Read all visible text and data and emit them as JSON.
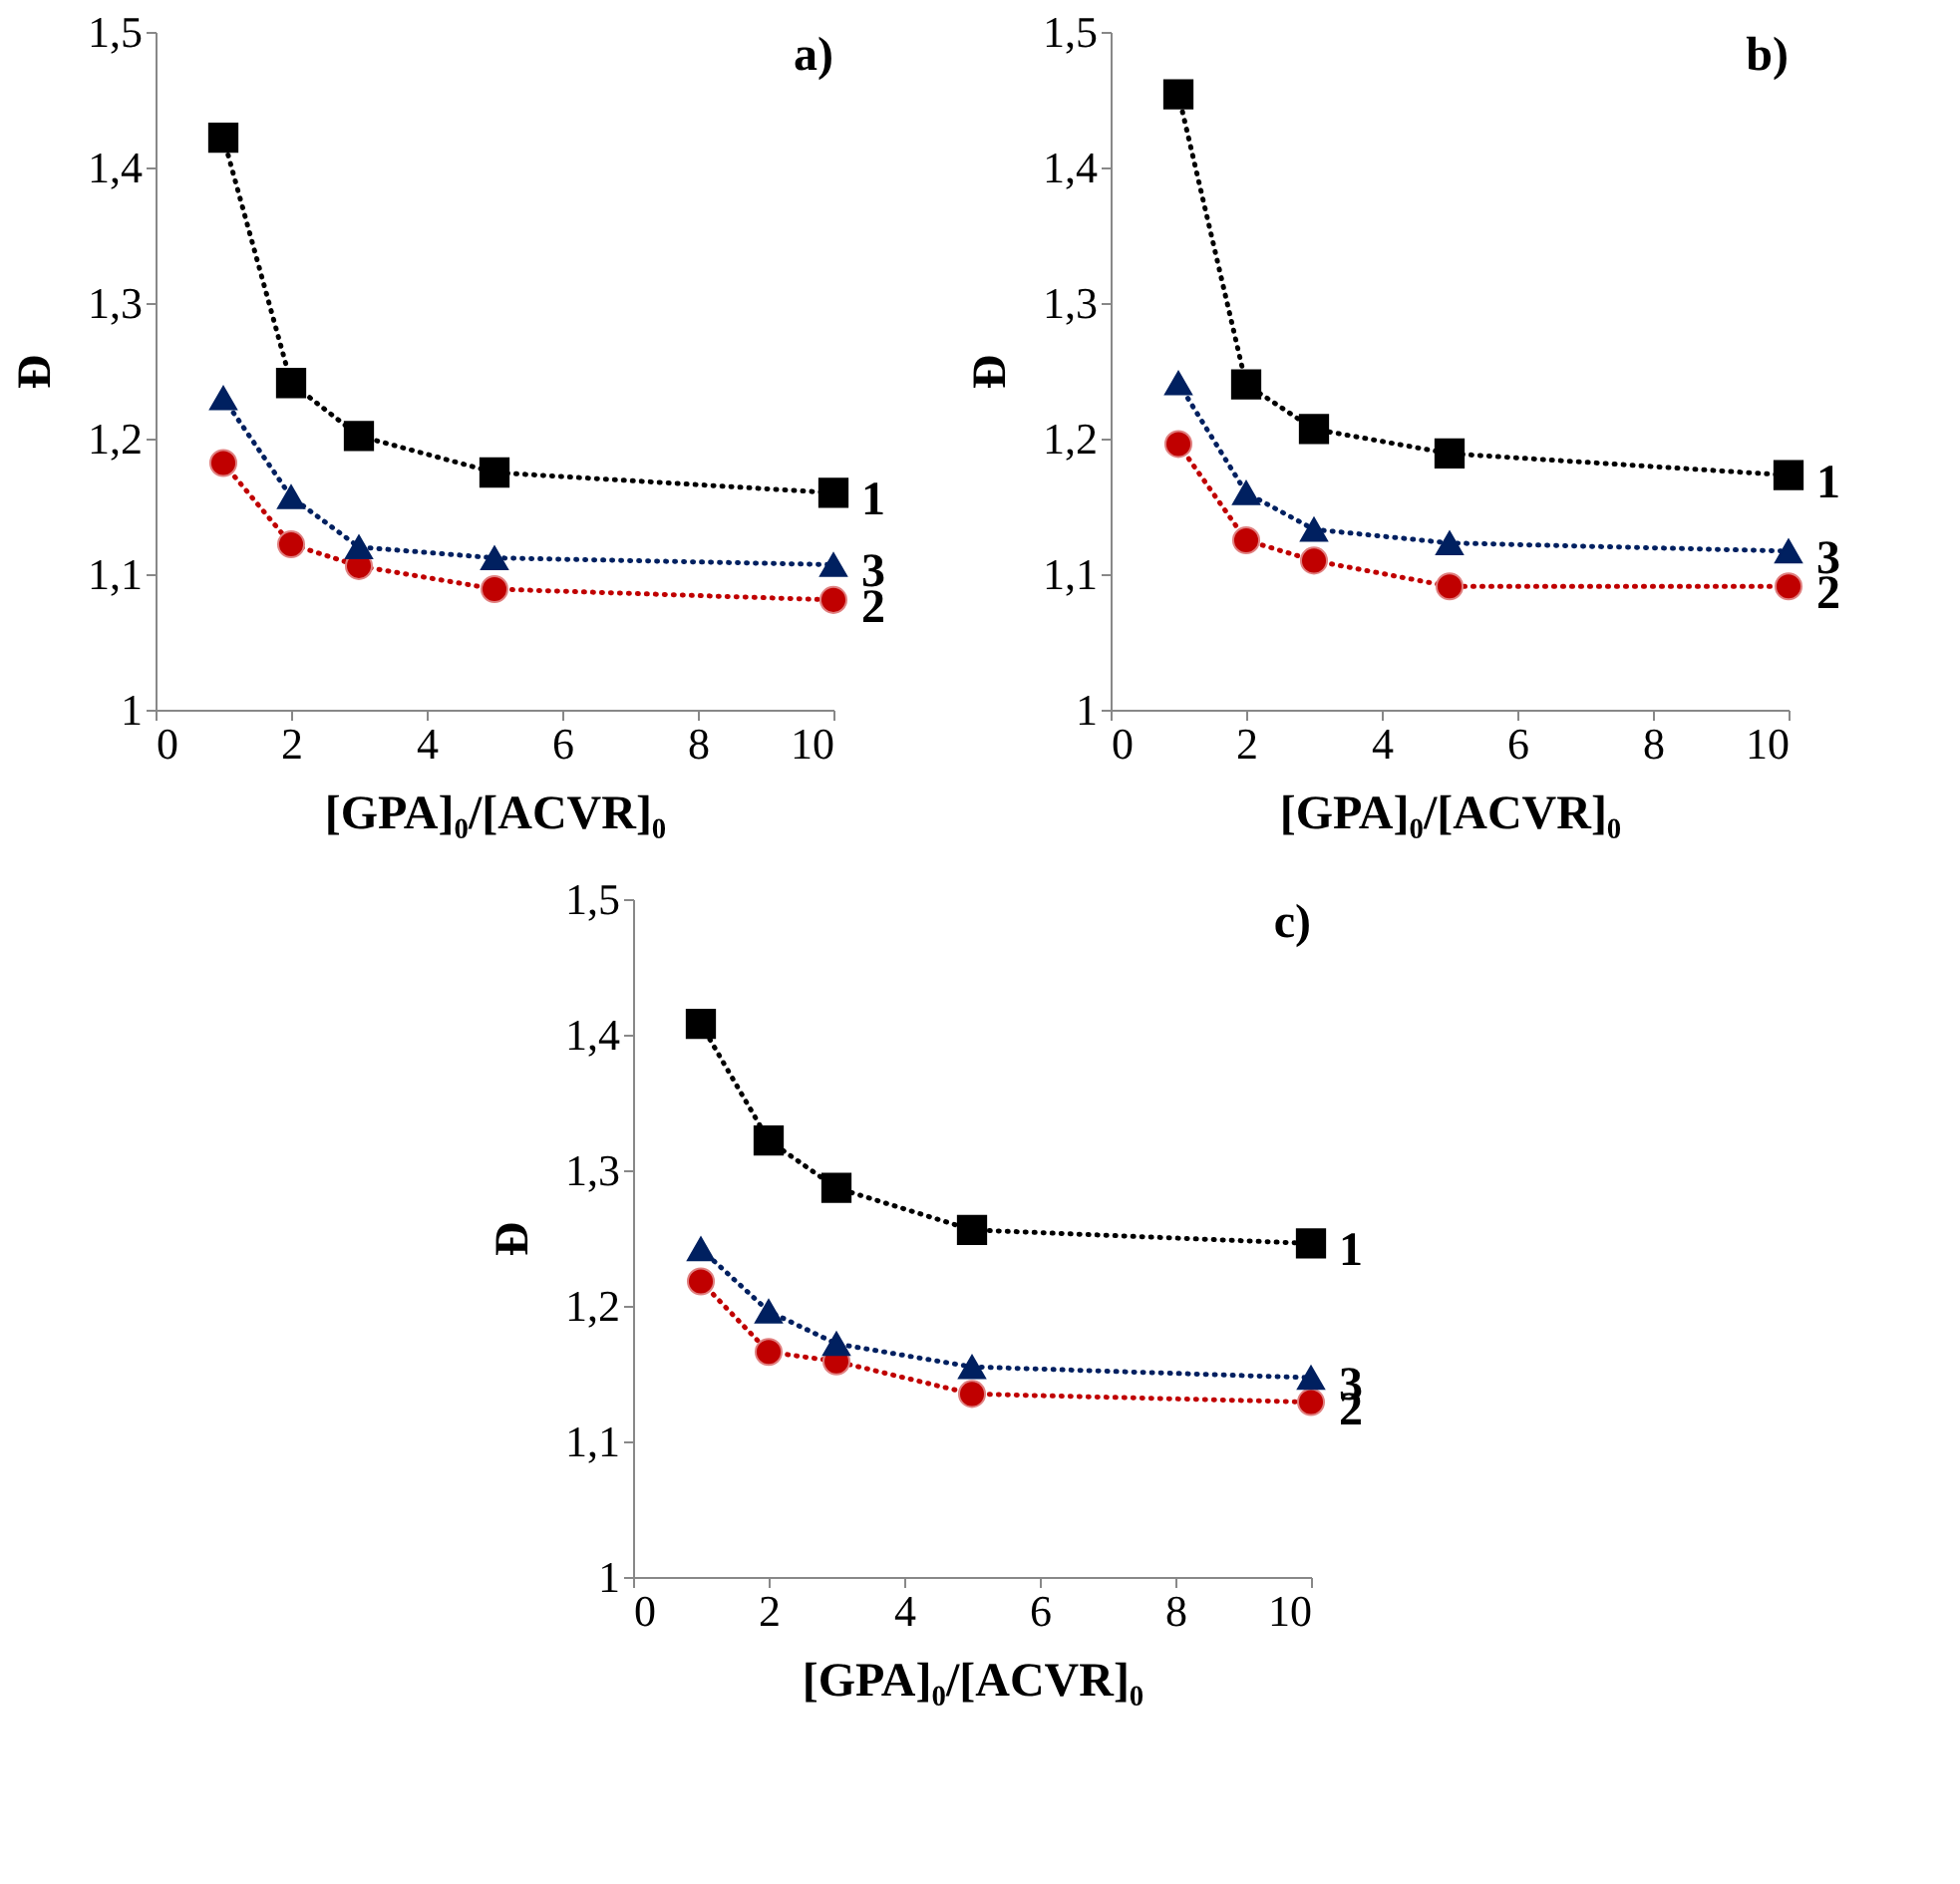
{
  "chart_data": [
    {
      "type": "line",
      "title": "a)",
      "xlabel": "[GPA]₀/[ACVR]₀",
      "ylabel": "Đ",
      "xlim": [
        0,
        10
      ],
      "xticks": [
        0,
        2,
        4,
        6,
        8,
        10
      ],
      "ylim": [
        1,
        1.5
      ],
      "yticks": [
        1,
        {
          "value": 1.1,
          "label": "1,1"
        },
        {
          "value": 1.2,
          "label": "1,2"
        },
        {
          "value": 1.3,
          "label": "1,3"
        },
        {
          "value": 1.4,
          "label": "1,4"
        },
        {
          "value": 1.5,
          "label": "1,5"
        }
      ],
      "grid": false,
      "line_style": "dotted",
      "series": [
        {
          "name": "1",
          "color": "#000000",
          "marker": "square",
          "x": [
            1,
            2,
            3,
            5,
            10
          ],
          "values": [
            1.422,
            1.241,
            1.202,
            1.175,
            1.16
          ]
        },
        {
          "name": "2",
          "color": "#c00000",
          "marker": "circle",
          "x": [
            1,
            2,
            3,
            5,
            10
          ],
          "values": [
            1.182,
            1.122,
            1.106,
            1.089,
            1.081
          ]
        },
        {
          "name": "3",
          "color": "#002060",
          "marker": "triangle",
          "x": [
            1,
            2,
            3,
            5,
            10
          ],
          "values": [
            1.23,
            1.157,
            1.12,
            1.112,
            1.107
          ]
        }
      ]
    },
    {
      "type": "line",
      "title": "b)",
      "xlabel": "[GPA]₀/[ACVR]₀",
      "ylabel": "Đ",
      "xlim": [
        0,
        10
      ],
      "xticks": [
        0,
        2,
        4,
        6,
        8,
        10
      ],
      "ylim": [
        1,
        1.5
      ],
      "yticks": [
        1,
        {
          "value": 1.1,
          "label": "1,1"
        },
        {
          "value": 1.2,
          "label": "1,2"
        },
        {
          "value": 1.3,
          "label": "1,3"
        },
        {
          "value": 1.4,
          "label": "1,4"
        },
        {
          "value": 1.5,
          "label": "1,5"
        }
      ],
      "grid": false,
      "line_style": "dotted",
      "series": [
        {
          "name": "1",
          "color": "#000000",
          "marker": "square",
          "x": [
            1,
            2,
            3,
            5,
            10
          ],
          "values": [
            1.454,
            1.24,
            1.207,
            1.189,
            1.173
          ]
        },
        {
          "name": "2",
          "color": "#c00000",
          "marker": "circle",
          "x": [
            1,
            2,
            3,
            5,
            10
          ],
          "values": [
            1.196,
            1.125,
            1.11,
            1.091,
            1.091
          ]
        },
        {
          "name": "3",
          "color": "#002060",
          "marker": "triangle",
          "x": [
            1,
            2,
            3,
            5,
            10
          ],
          "values": [
            1.241,
            1.16,
            1.133,
            1.123,
            1.117
          ]
        }
      ]
    },
    {
      "type": "line",
      "title": "c)",
      "xlabel": "[GPA]₀/[ACVR]₀",
      "ylabel": "Đ",
      "xlim": [
        0,
        10
      ],
      "xticks": [
        0,
        2,
        4,
        6,
        8,
        10
      ],
      "ylim": [
        1,
        1.5
      ],
      "yticks": [
        1,
        {
          "value": 1.1,
          "label": "1,1"
        },
        {
          "value": 1.2,
          "label": "1,2"
        },
        {
          "value": 1.3,
          "label": "1,3"
        },
        {
          "value": 1.4,
          "label": "1,4"
        },
        {
          "value": 1.5,
          "label": "1,5"
        }
      ],
      "grid": false,
      "line_style": "dotted",
      "series": [
        {
          "name": "1",
          "color": "#000000",
          "marker": "square",
          "x": [
            1,
            2,
            3,
            5,
            10
          ],
          "values": [
            1.408,
            1.322,
            1.287,
            1.256,
            1.246
          ]
        },
        {
          "name": "2",
          "color": "#c00000",
          "marker": "circle",
          "x": [
            1,
            2,
            3,
            5,
            10
          ],
          "values": [
            1.218,
            1.166,
            1.159,
            1.135,
            1.129
          ]
        },
        {
          "name": "3",
          "color": "#002060",
          "marker": "triangle",
          "x": [
            1,
            2,
            3,
            5,
            10
          ],
          "values": [
            1.242,
            1.196,
            1.172,
            1.155,
            1.147
          ]
        }
      ]
    }
  ]
}
